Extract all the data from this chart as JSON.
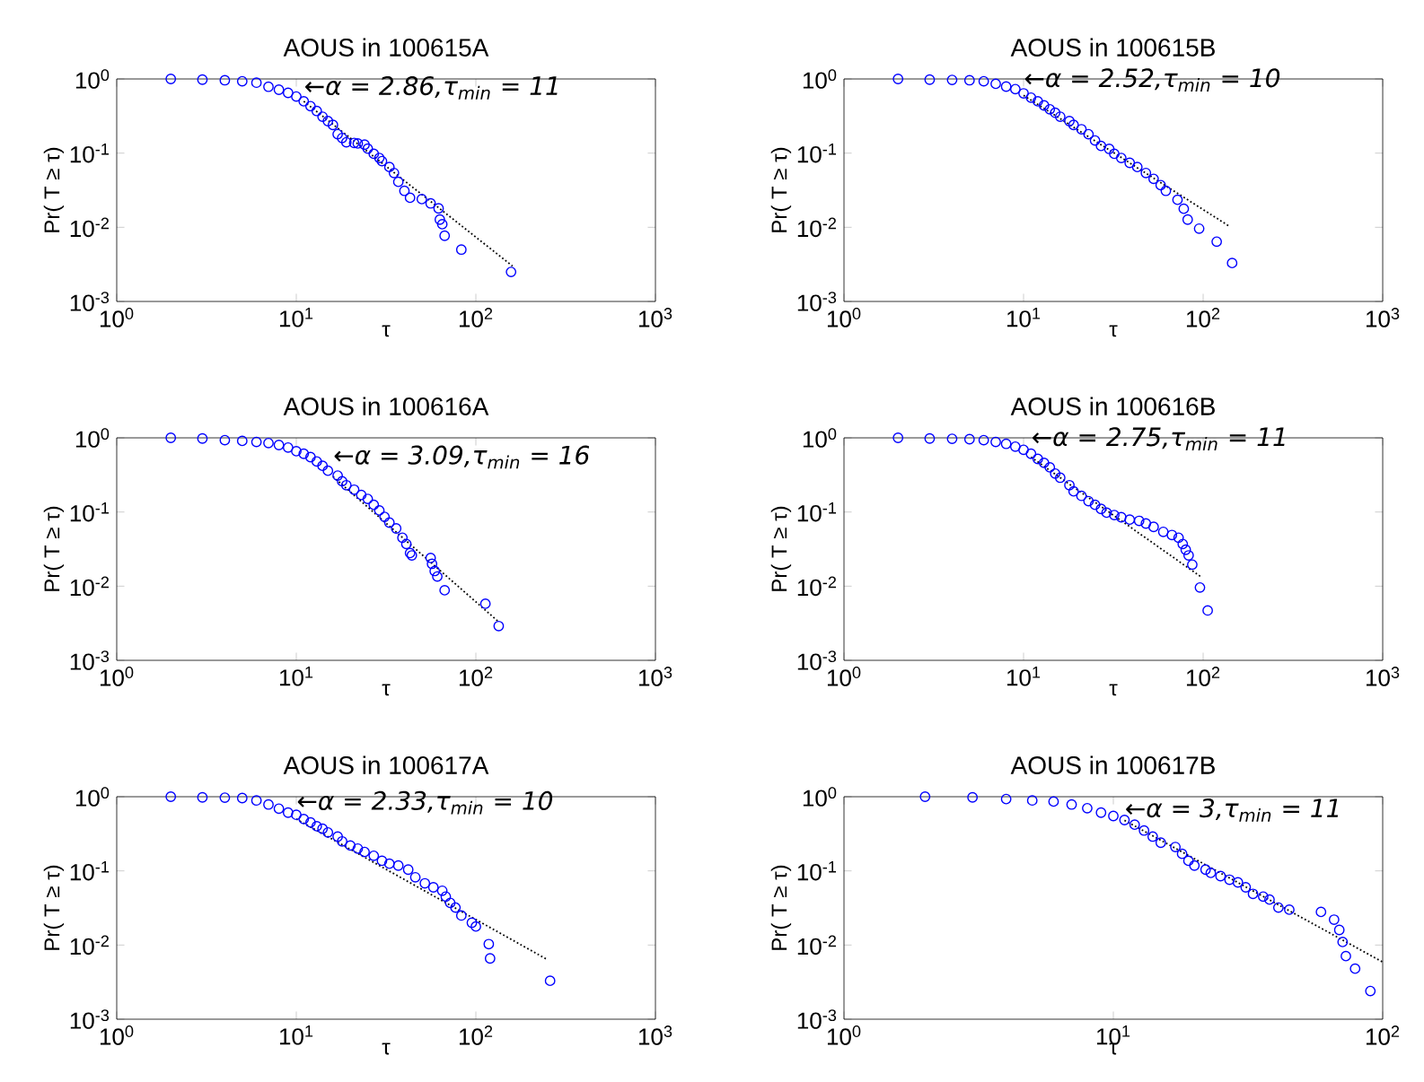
{
  "chart_data": [
    {
      "type": "scatter",
      "title": "AOUS in 100615A",
      "xlabel": "τ",
      "ylabel": "Pr( T ≥ τ)",
      "log": "xy",
      "xlim": [
        1,
        1000
      ],
      "ylim": [
        0.001,
        1
      ],
      "xticks": [
        {
          "value": 1,
          "label": "10$^{0}$"
        },
        {
          "value": 10,
          "label": "10$^{1}$"
        },
        {
          "value": 100,
          "label": "10$^{2}$"
        },
        {
          "value": 1000,
          "label": "10$^{3}$"
        }
      ],
      "yticks": [
        {
          "value": 0.001,
          "label": "10$^{-3}$"
        },
        {
          "value": 0.01,
          "label": "10$^{-2}$"
        },
        {
          "value": 0.1,
          "label": "10$^{-1}$"
        },
        {
          "value": 1,
          "label": "10$^{0}$"
        }
      ],
      "series": [
        {
          "type": "scatter",
          "marker": "circle",
          "color": "#0000ff",
          "x": [
            2,
            3,
            4,
            5,
            6,
            7,
            8,
            9,
            10,
            11,
            12,
            13,
            14,
            15,
            16,
            17,
            18,
            19,
            21,
            22,
            24,
            25,
            27,
            29,
            30,
            33,
            35,
            37,
            40,
            43,
            50,
            56,
            62,
            63,
            65,
            67,
            83,
            157
          ],
          "values": [
            1,
            0.98,
            0.96,
            0.93,
            0.89,
            0.785,
            0.716,
            0.65,
            0.58,
            0.5,
            0.43,
            0.37,
            0.31,
            0.27,
            0.24,
            0.18,
            0.16,
            0.14,
            0.137,
            0.135,
            0.13,
            0.115,
            0.098,
            0.086,
            0.078,
            0.065,
            0.054,
            0.041,
            0.031,
            0.025,
            0.024,
            0.021,
            0.018,
            0.0127,
            0.011,
            0.0077,
            0.005,
            0.0025
          ]
        },
        {
          "type": "line",
          "line_style": "dotted",
          "color": "#000000",
          "x": [
            11,
            160
          ],
          "values": [
            0.5,
            0.003
          ]
        }
      ],
      "annotations": [
        {
          "text": "←α = 2.86,τ$_{min}$ = 11",
          "x": 11,
          "y": 0.76
        }
      ]
    },
    {
      "type": "scatter",
      "title": "AOUS in 100615B",
      "xlabel": "τ",
      "ylabel": "Pr( T ≥ τ)",
      "log": "xy",
      "xlim": [
        1,
        1000
      ],
      "ylim": [
        0.001,
        1
      ],
      "xticks": [
        {
          "value": 1,
          "label": "10$^{0}$"
        },
        {
          "value": 10,
          "label": "10$^{1}$"
        },
        {
          "value": 100,
          "label": "10$^{2}$"
        },
        {
          "value": 1000,
          "label": "10$^{3}$"
        }
      ],
      "yticks": [
        {
          "value": 0.001,
          "label": "10$^{-3}$"
        },
        {
          "value": 0.01,
          "label": "10$^{-2}$"
        },
        {
          "value": 0.1,
          "label": "10$^{-1}$"
        },
        {
          "value": 1,
          "label": "10$^{0}$"
        }
      ],
      "series": [
        {
          "type": "scatter",
          "marker": "circle",
          "color": "#0000ff",
          "x": [
            2,
            3,
            4,
            5,
            6,
            7,
            8,
            9,
            10,
            11,
            12,
            13,
            14,
            15,
            16,
            18,
            19,
            21,
            23,
            25,
            27,
            30,
            32,
            35,
            39,
            43,
            48,
            53,
            58,
            62,
            72,
            78,
            82,
            95,
            119,
            145
          ],
          "values": [
            1,
            0.98,
            0.97,
            0.96,
            0.93,
            0.86,
            0.79,
            0.73,
            0.64,
            0.56,
            0.5,
            0.44,
            0.39,
            0.35,
            0.31,
            0.27,
            0.24,
            0.21,
            0.18,
            0.148,
            0.125,
            0.114,
            0.098,
            0.086,
            0.074,
            0.065,
            0.054,
            0.045,
            0.037,
            0.031,
            0.0235,
            0.0178,
            0.0127,
            0.0096,
            0.0064,
            0.0033
          ]
        },
        {
          "type": "line",
          "line_style": "dotted",
          "color": "#000000",
          "x": [
            10,
            141
          ],
          "values": [
            0.6,
            0.0102
          ]
        }
      ],
      "annotations": [
        {
          "text": "←α = 2.52,τ$_{min}$ = 10",
          "x": 10,
          "y": 0.97
        }
      ]
    },
    {
      "type": "scatter",
      "title": "AOUS in 100616A",
      "xlabel": "τ",
      "ylabel": "Pr( T ≥ τ)",
      "log": "xy",
      "xlim": [
        1,
        1000
      ],
      "ylim": [
        0.001,
        1
      ],
      "xticks": [
        {
          "value": 1,
          "label": "10$^{0}$"
        },
        {
          "value": 10,
          "label": "10$^{1}$"
        },
        {
          "value": 100,
          "label": "10$^{2}$"
        },
        {
          "value": 1000,
          "label": "10$^{3}$"
        }
      ],
      "yticks": [
        {
          "value": 0.001,
          "label": "10$^{-3}$"
        },
        {
          "value": 0.01,
          "label": "10$^{-2}$"
        },
        {
          "value": 0.1,
          "label": "10$^{-1}$"
        },
        {
          "value": 1,
          "label": "10$^{0}$"
        }
      ],
      "series": [
        {
          "type": "scatter",
          "marker": "circle",
          "color": "#0000ff",
          "x": [
            2,
            3,
            4,
            5,
            6,
            7,
            8,
            9,
            10,
            11,
            12,
            13,
            14,
            15,
            17,
            18,
            19,
            21,
            23,
            25,
            27,
            29,
            31,
            33,
            36,
            39,
            41,
            43,
            44,
            56,
            57,
            59,
            61,
            67,
            113,
            134
          ],
          "values": [
            1,
            0.98,
            0.93,
            0.91,
            0.88,
            0.85,
            0.8,
            0.74,
            0.66,
            0.61,
            0.55,
            0.48,
            0.42,
            0.36,
            0.31,
            0.26,
            0.23,
            0.2,
            0.17,
            0.15,
            0.125,
            0.105,
            0.086,
            0.072,
            0.06,
            0.045,
            0.037,
            0.028,
            0.026,
            0.024,
            0.02,
            0.016,
            0.0135,
            0.0088,
            0.0058,
            0.0029
          ]
        },
        {
          "type": "line",
          "line_style": "dotted",
          "color": "#000000",
          "x": [
            16,
            134
          ],
          "values": [
            0.3,
            0.0033
          ]
        }
      ],
      "annotations": [
        {
          "text": "←α = 3.09,τ$_{min}$ = 16",
          "x": 16,
          "y": 0.55
        }
      ]
    },
    {
      "type": "scatter",
      "title": "AOUS in 100616B",
      "xlabel": "τ",
      "ylabel": "Pr( T ≥ τ)",
      "log": "xy",
      "xlim": [
        1,
        1000
      ],
      "ylim": [
        0.001,
        1
      ],
      "xticks": [
        {
          "value": 1,
          "label": "10$^{0}$"
        },
        {
          "value": 10,
          "label": "10$^{1}$"
        },
        {
          "value": 100,
          "label": "10$^{2}$"
        },
        {
          "value": 1000,
          "label": "10$^{3}$"
        }
      ],
      "yticks": [
        {
          "value": 0.001,
          "label": "10$^{-3}$"
        },
        {
          "value": 0.01,
          "label": "10$^{-2}$"
        },
        {
          "value": 0.1,
          "label": "10$^{-1}$"
        },
        {
          "value": 1,
          "label": "10$^{0}$"
        }
      ],
      "series": [
        {
          "type": "scatter",
          "marker": "circle",
          "color": "#0000ff",
          "x": [
            2,
            3,
            4,
            5,
            6,
            7,
            8,
            9,
            10,
            11,
            12,
            13,
            14,
            15,
            16,
            18,
            19,
            21,
            23,
            25,
            27,
            29,
            32,
            35,
            39,
            44,
            48,
            53,
            60,
            67,
            73,
            77,
            80,
            83,
            87,
            96,
            106
          ],
          "values": [
            1,
            0.98,
            0.97,
            0.96,
            0.93,
            0.88,
            0.83,
            0.76,
            0.69,
            0.61,
            0.52,
            0.46,
            0.4,
            0.33,
            0.29,
            0.23,
            0.19,
            0.165,
            0.14,
            0.125,
            0.11,
            0.098,
            0.091,
            0.085,
            0.079,
            0.076,
            0.07,
            0.063,
            0.054,
            0.049,
            0.045,
            0.037,
            0.031,
            0.026,
            0.0195,
            0.0096,
            0.0047
          ]
        },
        {
          "type": "line",
          "line_style": "dotted",
          "color": "#000000",
          "x": [
            11,
            97
          ],
          "values": [
            0.55,
            0.0134
          ]
        }
      ],
      "annotations": [
        {
          "text": "←α = 2.75,τ$_{min}$ = 11",
          "x": 11,
          "y": 0.97
        }
      ]
    },
    {
      "type": "scatter",
      "title": "AOUS in 100617A",
      "xlabel": "τ",
      "ylabel": "Pr( T ≥ τ)",
      "log": "xy",
      "xlim": [
        1,
        1000
      ],
      "ylim": [
        0.001,
        1
      ],
      "xticks": [
        {
          "value": 1,
          "label": "10$^{0}$"
        },
        {
          "value": 10,
          "label": "10$^{1}$"
        },
        {
          "value": 100,
          "label": "10$^{2}$"
        },
        {
          "value": 1000,
          "label": "10$^{3}$"
        }
      ],
      "yticks": [
        {
          "value": 0.001,
          "label": "10$^{-3}$"
        },
        {
          "value": 0.01,
          "label": "10$^{-2}$"
        },
        {
          "value": 0.1,
          "label": "10$^{-1}$"
        },
        {
          "value": 1,
          "label": "10$^{0}$"
        }
      ],
      "series": [
        {
          "type": "scatter",
          "marker": "circle",
          "color": "#0000ff",
          "x": [
            2,
            3,
            4,
            5,
            6,
            7,
            8,
            9,
            10,
            11,
            12,
            13,
            14,
            15,
            17,
            18,
            20,
            22,
            24,
            27,
            30,
            33,
            37,
            42,
            46,
            52,
            58,
            65,
            68,
            72,
            77,
            83,
            95,
            100,
            118,
            120,
            259
          ],
          "values": [
            1,
            0.98,
            0.97,
            0.96,
            0.89,
            0.785,
            0.69,
            0.61,
            0.57,
            0.5,
            0.45,
            0.4,
            0.37,
            0.33,
            0.29,
            0.25,
            0.22,
            0.2,
            0.18,
            0.16,
            0.137,
            0.125,
            0.118,
            0.104,
            0.082,
            0.068,
            0.06,
            0.054,
            0.045,
            0.037,
            0.032,
            0.025,
            0.02,
            0.0178,
            0.0103,
            0.0066,
            0.0033
          ]
        },
        {
          "type": "line",
          "line_style": "dotted",
          "color": "#000000",
          "x": [
            10,
            249
          ],
          "values": [
            0.5,
            0.0064
          ]
        }
      ],
      "annotations": [
        {
          "text": "←α = 2.33,τ$_{min}$ = 10",
          "x": 10,
          "y": 0.83
        }
      ]
    },
    {
      "type": "scatter",
      "title": "AOUS in 100617B",
      "xlabel": "τ",
      "ylabel": "Pr( T ≥ τ)",
      "log": "xy",
      "xlim": [
        1,
        100
      ],
      "ylim": [
        0.001,
        1
      ],
      "xticks": [
        {
          "value": 1,
          "label": "10$^{0}$"
        },
        {
          "value": 10,
          "label": "10$^{1}$"
        },
        {
          "value": 100,
          "label": "10$^{2}$"
        }
      ],
      "yticks": [
        {
          "value": 0.001,
          "label": "10$^{-3}$"
        },
        {
          "value": 0.01,
          "label": "10$^{-2}$"
        },
        {
          "value": 0.1,
          "label": "10$^{-1}$"
        },
        {
          "value": 1,
          "label": "10$^{0}$"
        }
      ],
      "series": [
        {
          "type": "scatter",
          "marker": "circle",
          "color": "#0000ff",
          "x": [
            2,
            3,
            4,
            5,
            6,
            7,
            8,
            9,
            10,
            11,
            12,
            13,
            14,
            15,
            17,
            18,
            19,
            20,
            22,
            23,
            25,
            27,
            29,
            31,
            33,
            36,
            38,
            41,
            45,
            59,
            66,
            69,
            71,
            73,
            79,
            90
          ],
          "values": [
            1,
            0.98,
            0.93,
            0.89,
            0.86,
            0.785,
            0.7,
            0.61,
            0.55,
            0.485,
            0.42,
            0.35,
            0.29,
            0.24,
            0.21,
            0.17,
            0.137,
            0.118,
            0.104,
            0.094,
            0.085,
            0.076,
            0.07,
            0.06,
            0.049,
            0.045,
            0.041,
            0.032,
            0.03,
            0.028,
            0.022,
            0.016,
            0.011,
            0.0071,
            0.0048,
            0.0024
          ]
        },
        {
          "type": "line",
          "line_style": "dotted",
          "color": "#000000",
          "x": [
            11,
            100
          ],
          "values": [
            0.48,
            0.0059
          ]
        }
      ],
      "annotations": [
        {
          "text": "←α = 3,τ$_{min}$ = 11",
          "x": 11,
          "y": 0.66
        }
      ]
    }
  ]
}
